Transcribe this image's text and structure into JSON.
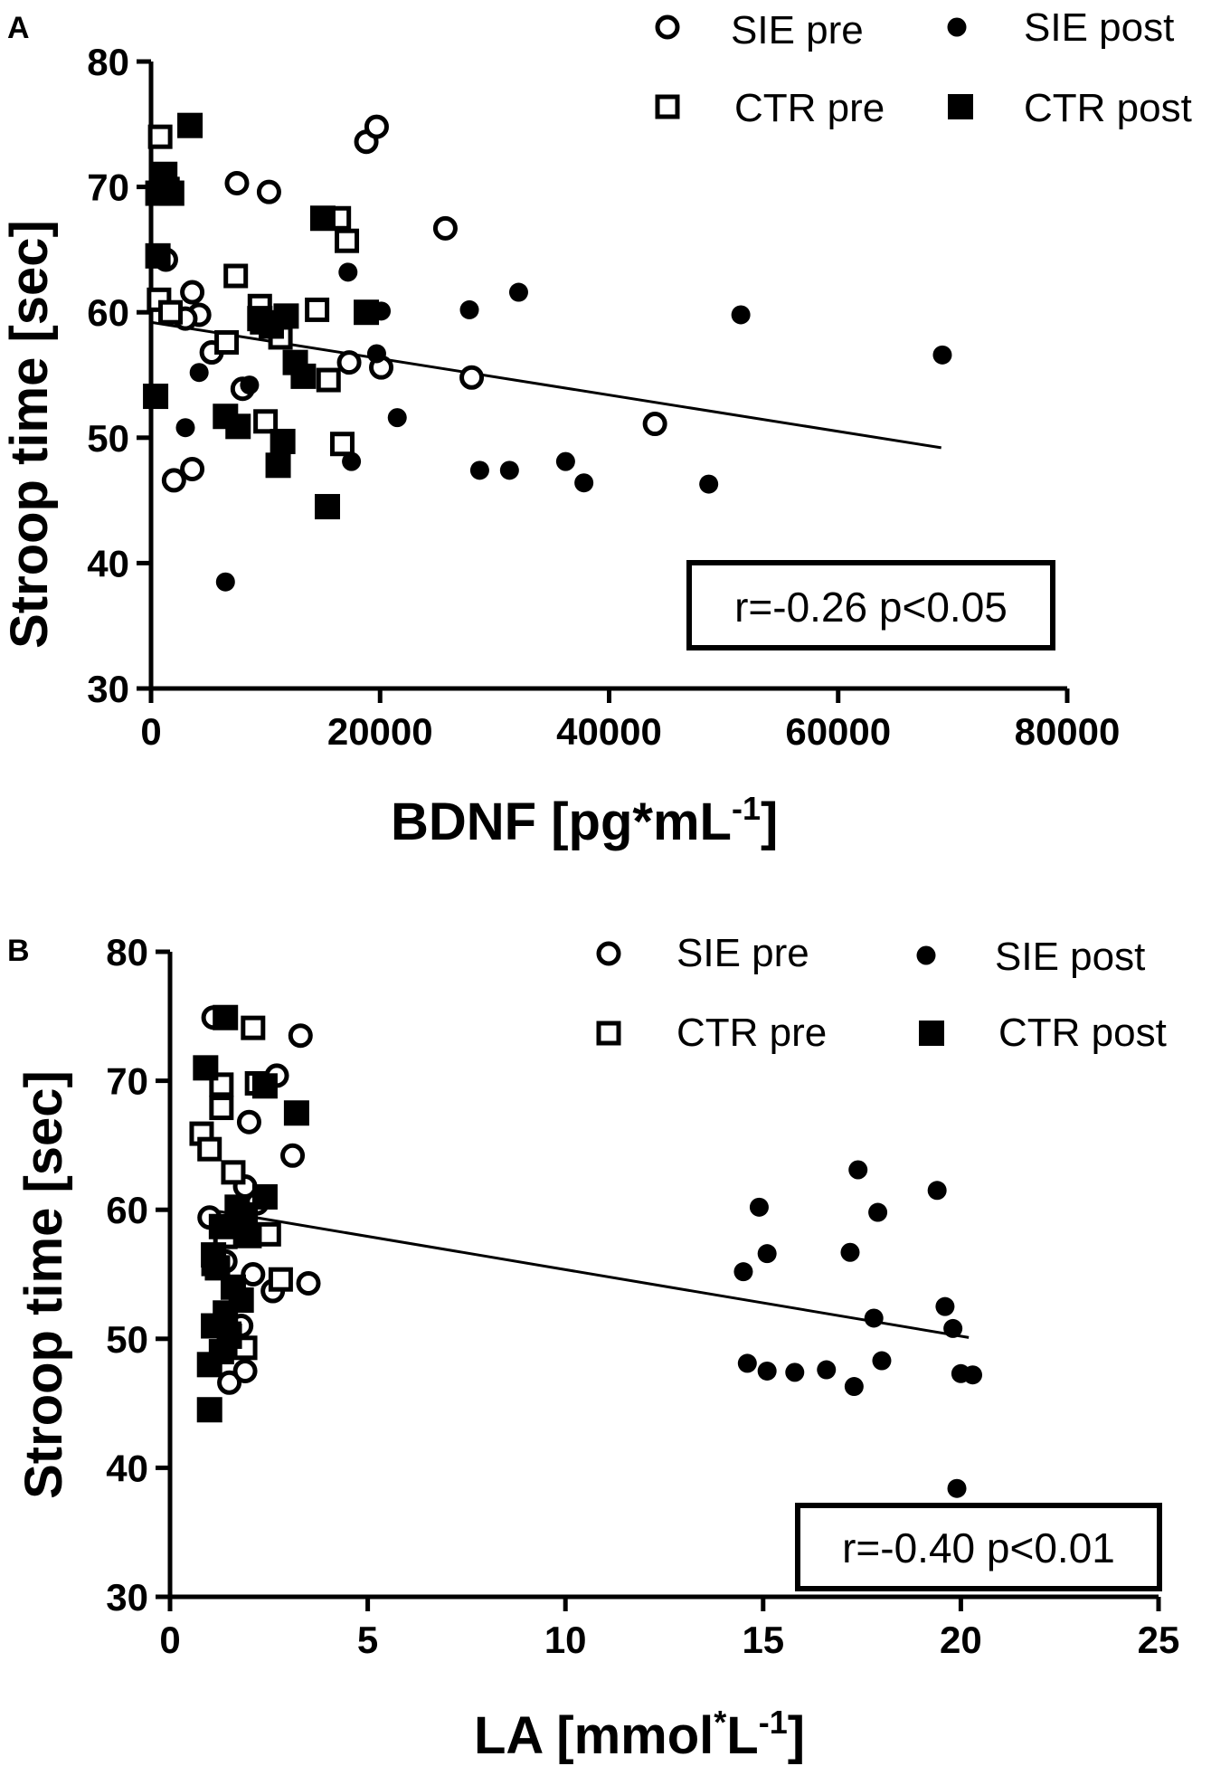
{
  "chart_data": [
    {
      "panel": "A",
      "type": "scatter",
      "xlabel": "BDNF [pg*mL",
      "xlabel_sup": "-1",
      "xlabel_end": "]",
      "ylabel": "Stroop time [sec]",
      "xlim": [
        0,
        80000
      ],
      "ylim": [
        30,
        80
      ],
      "xticks": [
        0,
        20000,
        40000,
        60000,
        80000
      ],
      "yticks": [
        30,
        40,
        50,
        60,
        70,
        80
      ],
      "annotation": "r=-0.26 p<0.05",
      "regression": {
        "x": [
          0,
          69000
        ],
        "y": [
          59.2,
          49.2
        ]
      },
      "legend": [
        {
          "label": "SIE pre",
          "marker": "open-circle"
        },
        {
          "label": "SIE post",
          "marker": "filled-circle"
        },
        {
          "label": "CTR pre",
          "marker": "open-square"
        },
        {
          "label": "CTR post",
          "marker": "filled-square"
        }
      ],
      "series": [
        {
          "name": "SIE pre",
          "marker": "open-circle",
          "x": [
            1300,
            2000,
            3600,
            3600,
            5300,
            7500,
            10300,
            8000,
            18800,
            19700,
            25700,
            17300,
            20100,
            28000,
            44000,
            4200,
            3000
          ],
          "y": [
            64.2,
            46.6,
            47.5,
            61.6,
            56.8,
            70.3,
            69.6,
            53.9,
            73.6,
            74.8,
            66.7,
            56.0,
            55.6,
            54.8,
            51.1,
            59.8,
            59.5
          ]
        },
        {
          "name": "SIE post",
          "marker": "filled-circle",
          "x": [
            6500,
            3000,
            4200,
            17200,
            19700,
            21500,
            27800,
            28700,
            31300,
            32100,
            36200,
            37800,
            48700,
            51500,
            69100,
            17500,
            20100,
            8600
          ],
          "y": [
            38.5,
            50.8,
            55.2,
            63.2,
            56.7,
            51.6,
            60.2,
            47.4,
            47.4,
            61.6,
            48.1,
            46.4,
            46.3,
            59.8,
            56.6,
            48.1,
            60.1,
            54.2
          ]
        },
        {
          "name": "CTR pre",
          "marker": "open-square",
          "x": [
            800,
            700,
            1700,
            7400,
            9500,
            10000,
            14500,
            16400,
            17100,
            15500,
            16700,
            6600,
            11300,
            9700
          ],
          "y": [
            74.0,
            61.0,
            60.0,
            62.9,
            60.5,
            51.3,
            60.2,
            67.5,
            65.7,
            54.6,
            49.5,
            57.6,
            58.0,
            59.2
          ]
        },
        {
          "name": "CTR post",
          "marker": "filled-square",
          "x": [
            400,
            1400,
            600,
            1800,
            1200,
            3400,
            6500,
            7600,
            11500,
            11800,
            10500,
            12600,
            13300,
            15000,
            15400,
            18800,
            9500,
            11100,
            600
          ],
          "y": [
            53.3,
            69.8,
            69.5,
            69.5,
            71.0,
            74.9,
            51.7,
            50.9,
            49.7,
            59.7,
            58.9,
            56.0,
            54.9,
            67.5,
            44.5,
            60.0,
            59.5,
            47.8,
            64.5
          ]
        }
      ]
    },
    {
      "panel": "B",
      "type": "scatter",
      "xlabel": "LA [mmol",
      "xlabel_sup1": "*",
      "xlabel_mid": "L",
      "xlabel_sup2": "-1",
      "xlabel_end": "]",
      "ylabel": "Stroop time [sec]",
      "xlim": [
        0,
        25
      ],
      "ylim": [
        30,
        80
      ],
      "xticks": [
        0,
        5,
        10,
        15,
        20,
        25
      ],
      "yticks": [
        30,
        40,
        50,
        60,
        70,
        80
      ],
      "annotation": "r=-0.40 p<0.01",
      "regression": {
        "x": [
          1.0,
          20.2
        ],
        "y": [
          60.0,
          50.1
        ]
      },
      "legend": [
        {
          "label": "SIE pre",
          "marker": "open-circle"
        },
        {
          "label": "SIE post",
          "marker": "filled-circle"
        },
        {
          "label": "CTR pre",
          "marker": "open-square"
        },
        {
          "label": "CTR post",
          "marker": "filled-square"
        }
      ],
      "series": [
        {
          "name": "SIE pre",
          "marker": "open-circle",
          "x": [
            1.1,
            3.3,
            2.7,
            2.0,
            3.1,
            1.0,
            1.9,
            3.5,
            2.6,
            2.1,
            1.5,
            1.9,
            1.8,
            2.2,
            1.4
          ],
          "y": [
            74.9,
            73.5,
            70.4,
            66.8,
            64.2,
            59.4,
            61.8,
            54.3,
            53.7,
            55.0,
            46.6,
            47.5,
            51.0,
            60.5,
            56.0
          ]
        },
        {
          "name": "SIE post",
          "marker": "filled-circle",
          "x": [
            14.5,
            14.9,
            15.1,
            17.2,
            17.4,
            17.9,
            19.4,
            19.6,
            19.8,
            14.6,
            15.1,
            15.8,
            16.6,
            17.3,
            18.0,
            20.0,
            20.3,
            19.9,
            17.8
          ],
          "y": [
            55.2,
            60.2,
            56.6,
            56.7,
            63.1,
            59.8,
            61.5,
            52.5,
            50.8,
            48.1,
            47.5,
            47.4,
            47.6,
            46.3,
            48.3,
            47.3,
            47.2,
            38.4,
            51.6
          ]
        },
        {
          "name": "CTR pre",
          "marker": "open-square",
          "x": [
            2.1,
            0.8,
            1.3,
            1.0,
            1.3,
            1.6,
            2.5,
            2.8,
            1.9,
            2.2,
            1.7,
            1.4,
            1.1,
            1.5
          ],
          "y": [
            74.1,
            65.9,
            67.9,
            64.7,
            69.7,
            62.9,
            58.1,
            54.6,
            49.3,
            69.8,
            60.2,
            57.9,
            55.8,
            50.4
          ]
        },
        {
          "name": "CTR post",
          "marker": "filled-square",
          "x": [
            1.0,
            1.4,
            3.2,
            0.9,
            1.1,
            1.4,
            2.4,
            2.4,
            1.0,
            1.3,
            1.7,
            1.6,
            1.9,
            1.2,
            1.5,
            1.1,
            2.0,
            1.3,
            1.8
          ],
          "y": [
            44.5,
            74.9,
            67.5,
            71.0,
            51.0,
            52.0,
            69.6,
            61.0,
            48.0,
            58.7,
            60.2,
            54.0,
            59.6,
            55.5,
            50.2,
            56.5,
            58.0,
            49.0,
            53.0
          ]
        }
      ]
    }
  ]
}
